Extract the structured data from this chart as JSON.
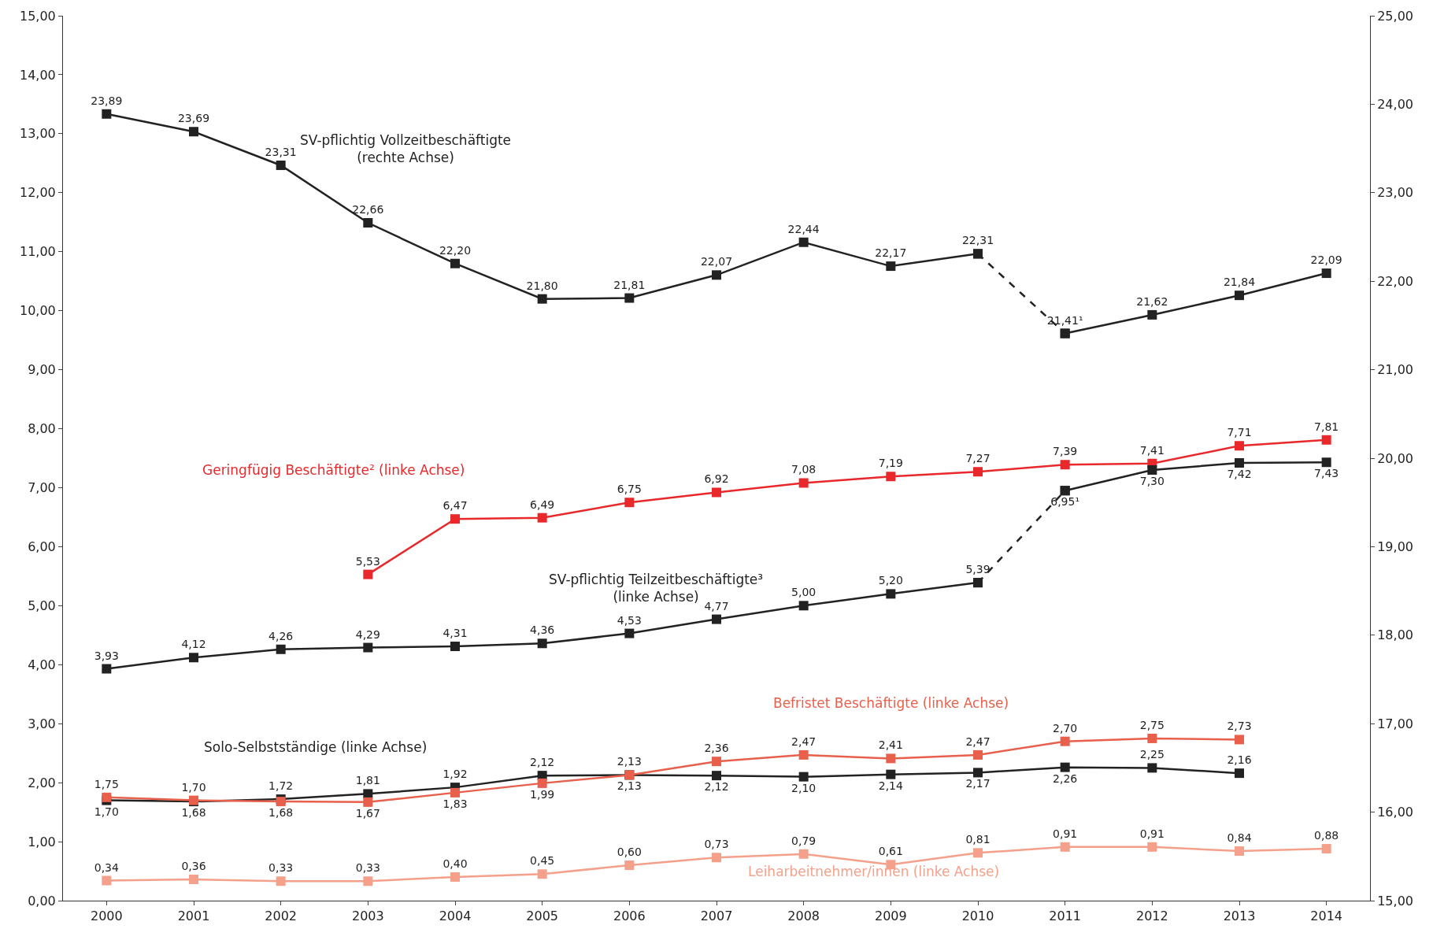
{
  "chart_data": {
    "type": "line",
    "categories": [
      "2000",
      "2001",
      "2002",
      "2003",
      "2004",
      "2005",
      "2006",
      "2007",
      "2008",
      "2009",
      "2010",
      "2011",
      "2012",
      "2013",
      "2014"
    ],
    "ylim": [
      0,
      15
    ],
    "yticks": [
      {
        "value": 0,
        "label": "0,00"
      },
      {
        "value": 1,
        "label": "1,00"
      },
      {
        "value": 2,
        "label": "2,00"
      },
      {
        "value": 3,
        "label": "3,00"
      },
      {
        "value": 4,
        "label": "4,00"
      },
      {
        "value": 5,
        "label": "5,00"
      },
      {
        "value": 6,
        "label": "6,00"
      },
      {
        "value": 7,
        "label": "7,00"
      },
      {
        "value": 8,
        "label": "8,00"
      },
      {
        "value": 9,
        "label": "9,00"
      },
      {
        "value": 10,
        "label": "10,00"
      },
      {
        "value": 11,
        "label": "11,00"
      },
      {
        "value": 12,
        "label": "12,00"
      },
      {
        "value": 13,
        "label": "13,00"
      },
      {
        "value": 14,
        "label": "14,00"
      },
      {
        "value": 15,
        "label": "15,00"
      }
    ],
    "y2lim": [
      15,
      25
    ],
    "y2ticks": [
      {
        "value": 15,
        "label": "15,00"
      },
      {
        "value": 16,
        "label": "16,00"
      },
      {
        "value": 17,
        "label": "17,00"
      },
      {
        "value": 18,
        "label": "18,00"
      },
      {
        "value": 19,
        "label": "19,00"
      },
      {
        "value": 20,
        "label": "20,00"
      },
      {
        "value": 21,
        "label": "21,00"
      },
      {
        "value": 22,
        "label": "22,00"
      },
      {
        "value": 23,
        "label": "23,00"
      },
      {
        "value": 24,
        "label": "24,00"
      },
      {
        "value": 25,
        "label": "25,00"
      }
    ],
    "legend": false,
    "marker": "square",
    "series": [
      {
        "name": "SV-pflichtig Vollzeitbeschäftigte\n(rechte Achse)",
        "color": "#222222",
        "axis": "y2",
        "line_style": "solid",
        "values": [
          23.89,
          23.69,
          23.31,
          22.66,
          22.2,
          21.8,
          21.81,
          22.07,
          22.44,
          22.17,
          22.31,
          null,
          null,
          null,
          null
        ],
        "value_labels": [
          "23,89",
          "23,69",
          "23,31",
          "22,66",
          "22,20",
          "21,80",
          "21,81",
          "22,07",
          "22,44",
          "22,17",
          "22,31",
          null,
          null,
          null,
          null
        ]
      },
      {
        "color": "#222222",
        "axis": "y2",
        "line_style": "dashed",
        "values": [
          null,
          null,
          null,
          null,
          null,
          null,
          null,
          null,
          null,
          null,
          22.31,
          21.41,
          null,
          null,
          null
        ]
      },
      {
        "color": "#222222",
        "axis": "y2",
        "line_style": "solid",
        "values": [
          null,
          null,
          null,
          null,
          null,
          null,
          null,
          null,
          null,
          null,
          null,
          21.41,
          21.62,
          21.84,
          22.09
        ],
        "value_labels": [
          null,
          null,
          null,
          null,
          null,
          null,
          null,
          null,
          null,
          null,
          null,
          "21,41¹",
          "21,62",
          "21,84",
          "22,09"
        ]
      },
      {
        "name": "Geringfügig Beschäftigte² (linke Achse)",
        "color": "#e8282b",
        "line_style": "solid",
        "values": [
          null,
          null,
          null,
          5.53,
          6.47,
          6.49,
          6.75,
          6.92,
          7.08,
          7.19,
          7.27,
          7.39,
          7.41,
          7.71,
          7.81
        ],
        "value_labels": [
          null,
          null,
          null,
          "5,53",
          "6,47",
          "6,49",
          "6,75",
          "6,92",
          "7,08",
          "7,19",
          "7,27",
          "7,39",
          "7,41",
          "7,71",
          "7,81"
        ]
      },
      {
        "name": "SV-pflichtig Teilzeitbeschäftigte³\n(linke Achse)",
        "color": "#222222",
        "line_style": "solid",
        "values": [
          3.93,
          4.12,
          4.26,
          4.29,
          4.31,
          4.36,
          4.53,
          4.77,
          5.0,
          5.2,
          5.39,
          null,
          null,
          null,
          null
        ],
        "value_labels": [
          "3,93",
          "4,12",
          "4,26",
          "4,29",
          "4,31",
          "4,36",
          "4,53",
          "4,77",
          "5,00",
          "5,20",
          "5,39",
          null,
          null,
          null,
          null
        ]
      },
      {
        "color": "#222222",
        "line_style": "dashed",
        "values": [
          null,
          null,
          null,
          null,
          null,
          null,
          null,
          null,
          null,
          null,
          5.39,
          6.95,
          null,
          null,
          null
        ]
      },
      {
        "color": "#222222",
        "line_style": "solid",
        "values": [
          null,
          null,
          null,
          null,
          null,
          null,
          null,
          null,
          null,
          null,
          null,
          6.95,
          7.3,
          7.42,
          7.43
        ],
        "value_labels": [
          null,
          null,
          null,
          null,
          null,
          null,
          null,
          null,
          null,
          null,
          null,
          "6,95¹",
          "7,30",
          "7,42",
          "7,43"
        ]
      },
      {
        "name": "Solo-Selbstständige (linke Achse)",
        "color": "#222222",
        "line_style": "solid",
        "values": [
          1.7,
          1.68,
          1.72,
          1.81,
          1.92,
          2.12,
          2.13,
          2.12,
          2.1,
          2.14,
          2.17,
          2.26,
          2.25,
          2.16,
          null
        ],
        "value_labels": [
          "1,70",
          "1,68",
          "1,72",
          "1,81",
          "1,92",
          "2,12",
          "2,13",
          "2,12",
          "2,10",
          "2,14",
          "2,17",
          "2,26",
          "2,25",
          "2,16",
          null
        ]
      },
      {
        "name": "Befristet Beschäftigte (linke Achse)",
        "color": "#e8604c",
        "line_style": "solid",
        "values": [
          1.75,
          1.7,
          1.68,
          1.67,
          1.83,
          1.99,
          2.13,
          2.36,
          2.47,
          2.41,
          2.47,
          2.7,
          2.75,
          2.73,
          null
        ],
        "value_labels": [
          "1,75",
          "1,70",
          "1,68",
          "1,67",
          "1,83",
          "1,99",
          "2,13",
          "2,36",
          "2,47",
          "2,41",
          "2,47",
          "2,70",
          "2,75",
          "2,73",
          null
        ]
      },
      {
        "name": "Leiharbeitnehmer/innen (linke Achse)",
        "color": "#f4a08a",
        "line_style": "solid",
        "values": [
          0.34,
          0.36,
          0.33,
          0.33,
          0.4,
          0.45,
          0.6,
          0.73,
          0.79,
          0.61,
          0.81,
          0.91,
          0.91,
          0.84,
          0.88
        ],
        "value_labels": [
          "0,34",
          "0,36",
          "0,33",
          "0,33",
          "0,40",
          "0,45",
          "0,60",
          "0,73",
          "0,79",
          "0,61",
          "0,81",
          "0,91",
          "0,91",
          "0,84",
          "0,88"
        ]
      }
    ]
  }
}
